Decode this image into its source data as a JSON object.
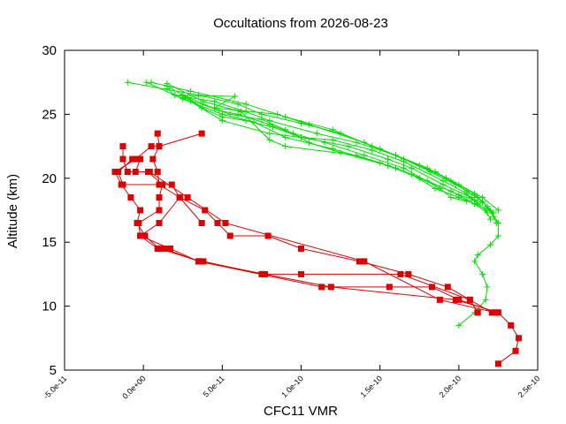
{
  "chart_data": {
    "type": "line",
    "title": "Occultations from 2026-08-23",
    "xlabel": "CFC11 VMR",
    "ylabel": "Altitude (km)",
    "xlim": [
      -5e-11,
      2.5e-10
    ],
    "ylim": [
      5,
      30
    ],
    "x_ticks": [
      {
        "value": -5e-11,
        "label": "-5.0e-11"
      },
      {
        "value": 0,
        "label": "0.0e+00"
      },
      {
        "value": 5e-11,
        "label": "5.0e-11"
      },
      {
        "value": 1e-10,
        "label": "1.0e-10"
      },
      {
        "value": 1.5e-10,
        "label": "1.5e-10"
      },
      {
        "value": 2e-10,
        "label": "2.0e-10"
      },
      {
        "value": 2.5e-10,
        "label": "2.5e-10"
      }
    ],
    "y_ticks": [
      {
        "value": 5,
        "label": "5"
      },
      {
        "value": 10,
        "label": "10"
      },
      {
        "value": 15,
        "label": "15"
      },
      {
        "value": 20,
        "label": "20"
      },
      {
        "value": 25,
        "label": "25"
      },
      {
        "value": 30,
        "label": "30"
      }
    ],
    "grid": false,
    "legend": "none",
    "series": [
      {
        "color": "#00dd00",
        "marker": "plus",
        "points": [
          [
            2e-11,
            26.5
          ],
          [
            5.8e-11,
            26.4
          ],
          [
            4.5e-11,
            25.5
          ],
          [
            8.5e-11,
            25.0
          ],
          [
            1.05e-10,
            24.2
          ],
          [
            1.4e-10,
            22.8
          ],
          [
            1.65e-10,
            21.5
          ],
          [
            1.85e-10,
            20.5
          ],
          [
            2e-10,
            19.5
          ],
          [
            2.15e-10,
            18.5
          ],
          [
            2.25e-10,
            17.5
          ]
        ]
      },
      {
        "color": "#00dd00",
        "marker": "plus",
        "points": [
          [
            -1e-11,
            27.5
          ],
          [
            3.5e-11,
            26.5
          ],
          [
            6e-11,
            25.8
          ],
          [
            7.5e-11,
            25.0
          ],
          [
            1e-10,
            24.3
          ],
          [
            1.25e-10,
            23.5
          ],
          [
            1.5e-10,
            22.3
          ],
          [
            1.8e-10,
            20.8
          ],
          [
            1.95e-10,
            19.8
          ],
          [
            2.1e-10,
            18.8
          ],
          [
            2.2e-10,
            17.5
          ],
          [
            2.25e-10,
            16.5
          ],
          [
            2.25e-10,
            15.5
          ],
          [
            2.2e-10,
            14.8
          ],
          [
            2.12e-10,
            14.0
          ],
          [
            2.1e-10,
            13.5
          ],
          [
            2.15e-10,
            12.5
          ],
          [
            2.18e-10,
            11.5
          ],
          [
            2.17e-10,
            10.5
          ],
          [
            2.1e-10,
            9.5
          ],
          [
            2e-10,
            8.5
          ]
        ]
      },
      {
        "color": "#00dd00",
        "marker": "plus",
        "points": [
          [
            5e-12,
            27.5
          ],
          [
            3e-11,
            26.8
          ],
          [
            6.5e-11,
            25.8
          ],
          [
            9e-11,
            24.8
          ],
          [
            1.2e-10,
            23.8
          ],
          [
            1.45e-10,
            22.5
          ],
          [
            1.75e-10,
            21.0
          ],
          [
            1.92e-10,
            20.0
          ],
          [
            2.05e-10,
            19.0
          ],
          [
            2.15e-10,
            18.2
          ],
          [
            2.22e-10,
            17.0
          ],
          [
            2.24e-10,
            16.5
          ]
        ]
      },
      {
        "color": "#00dd00",
        "marker": "plus",
        "points": [
          [
            1.5e-11,
            27.0
          ],
          [
            2e-11,
            26.5
          ],
          [
            4.5e-11,
            26.0
          ],
          [
            6.5e-11,
            25.2
          ],
          [
            8e-11,
            24.5
          ],
          [
            1.1e-10,
            23.5
          ],
          [
            1.35e-10,
            22.8
          ],
          [
            1.6e-10,
            21.8
          ],
          [
            1.82e-10,
            20.5
          ],
          [
            1.98e-10,
            19.5
          ],
          [
            2.12e-10,
            18.5
          ],
          [
            2.18e-10,
            17.8
          ],
          [
            2.22e-10,
            17.3
          ]
        ]
      },
      {
        "color": "#00dd00",
        "marker": "plus",
        "points": [
          [
            1.5e-11,
            27.2
          ],
          [
            2.8e-11,
            26.3
          ],
          [
            3.7e-11,
            25.5
          ],
          [
            5e-11,
            24.8
          ],
          [
            6.5e-11,
            24.5
          ],
          [
            8.2e-11,
            24.0
          ],
          [
            1e-10,
            23.2
          ],
          [
            1.3e-10,
            22.5
          ],
          [
            1.55e-10,
            21.5
          ],
          [
            1.7e-10,
            20.8
          ],
          [
            1.9e-10,
            19.5
          ],
          [
            2.08e-10,
            18.5
          ],
          [
            2.17e-10,
            17.5
          ],
          [
            2.2e-10,
            16.8
          ]
        ]
      },
      {
        "color": "#00dd00",
        "marker": "plus",
        "points": [
          [
            2.5e-11,
            26.5
          ],
          [
            4.8e-11,
            25.3
          ],
          [
            6e-11,
            25.0
          ],
          [
            8e-11,
            24.2
          ],
          [
            9.5e-11,
            23.5
          ],
          [
            1.15e-10,
            22.8
          ],
          [
            1.4e-10,
            21.8
          ],
          [
            1.65e-10,
            20.8
          ],
          [
            1.88e-10,
            19.2
          ],
          [
            1.95e-10,
            18.5
          ],
          [
            2.05e-10,
            18.2
          ],
          [
            2.1e-10,
            18.3
          ]
        ]
      },
      {
        "color": "#00dd00",
        "marker": "plus",
        "points": [
          [
            2e-12,
            27.5
          ],
          [
            2.5e-11,
            26.2
          ],
          [
            5e-11,
            25.0
          ],
          [
            7e-11,
            24.4
          ],
          [
            9e-11,
            23.2
          ],
          [
            1.2e-10,
            22.3
          ],
          [
            1.5e-10,
            21.2
          ],
          [
            1.7e-10,
            20.3
          ],
          [
            1.85e-10,
            19.2
          ],
          [
            2e-10,
            18.5
          ],
          [
            2.1e-10,
            18.0
          ],
          [
            2.18e-10,
            17.3
          ]
        ]
      },
      {
        "color": "#00dd00",
        "marker": "plus",
        "points": [
          [
            3e-11,
            26.0
          ],
          [
            5e-11,
            24.5
          ],
          [
            8e-11,
            23.5
          ],
          [
            1e-10,
            23.2
          ],
          [
            1.2e-10,
            23.0
          ],
          [
            1.45e-10,
            22.2
          ],
          [
            1.65e-10,
            21.3
          ],
          [
            1.9e-10,
            19.8
          ],
          [
            2.05e-10,
            18.8
          ],
          [
            2.12e-10,
            18.0
          ]
        ]
      },
      {
        "color": "#00dd00",
        "marker": "plus",
        "points": [
          [
            2.5e-11,
            26.3
          ],
          [
            5.5e-11,
            25.0
          ],
          [
            7.5e-11,
            24.6
          ],
          [
            9e-11,
            23.8
          ],
          [
            1.05e-10,
            22.8
          ],
          [
            1.25e-10,
            22.0
          ],
          [
            1.55e-10,
            21.0
          ],
          [
            1.75e-10,
            20.0
          ],
          [
            1.95e-10,
            19.0
          ],
          [
            2.1e-10,
            18.0
          ],
          [
            2.2e-10,
            17.5
          ]
        ]
      },
      {
        "color": "#00dd00",
        "marker": "plus",
        "points": [
          [
            1.5e-11,
            27.4
          ],
          [
            3.8e-11,
            26.0
          ],
          [
            6.2e-11,
            25.2
          ],
          [
            8e-11,
            23.0
          ],
          [
            9e-11,
            22.5
          ],
          [
            1.35e-10,
            21.8
          ],
          [
            1.6e-10,
            20.8
          ],
          [
            1.8e-10,
            19.8
          ],
          [
            2e-10,
            18.7
          ],
          [
            2.15e-10,
            18.1
          ]
        ]
      },
      {
        "color": "#dd0000",
        "marker": "square",
        "points": [
          [
            3.7e-11,
            23.5
          ],
          [
            1e-11,
            22.5
          ],
          [
            5e-12,
            22.5
          ],
          [
            -5e-12,
            21.5
          ],
          [
            -1.8e-11,
            20.5
          ],
          [
            -1.4e-11,
            19.5
          ],
          [
            -8e-12,
            18.5
          ],
          [
            -2e-12,
            17.5
          ],
          [
            -4e-12,
            16.5
          ],
          [
            1e-12,
            15.5
          ],
          [
            1e-11,
            14.5
          ],
          [
            3.6e-11,
            13.5
          ],
          [
            7.7e-11,
            12.5
          ],
          [
            1.19e-10,
            11.5
          ],
          [
            1.98e-10,
            10.5
          ],
          [
            2.25e-10,
            9.5
          ],
          [
            2.33e-10,
            8.5
          ],
          [
            2.38e-10,
            7.5
          ],
          [
            2.36e-10,
            6.5
          ],
          [
            2.25e-10,
            5.5
          ]
        ]
      },
      {
        "color": "#dd0000",
        "marker": "square",
        "points": [
          [
            9e-12,
            23.5
          ],
          [
            1e-11,
            22.5
          ],
          [
            6e-12,
            21.5
          ],
          [
            9e-12,
            20.5
          ],
          [
            1e-11,
            19.5
          ],
          [
            2.3e-11,
            18.5
          ],
          [
            3.9e-11,
            17.5
          ],
          [
            4.7e-11,
            16.5
          ],
          [
            5.5e-11,
            15.5
          ],
          [
            7.9e-11,
            15.5
          ],
          [
            1e-10,
            14.5
          ],
          [
            1.37e-10,
            13.5
          ],
          [
            1.68e-10,
            12.5
          ],
          [
            1.93e-10,
            11.5
          ],
          [
            2.07e-10,
            10.5
          ],
          [
            2.21e-10,
            9.5
          ]
        ]
      },
      {
        "color": "#dd0000",
        "marker": "square",
        "points": [
          [
            -1.3e-11,
            22.5
          ],
          [
            -1.3e-11,
            21.5
          ],
          [
            -1e-11,
            20.5
          ],
          [
            3e-12,
            20.5
          ],
          [
            1.2e-11,
            19.5
          ],
          [
            1e-11,
            18.5
          ],
          [
            1e-11,
            17.5
          ],
          [
            -3e-12,
            16.5
          ],
          [
            -2e-12,
            15.5
          ],
          [
            9e-12,
            14.5
          ],
          [
            1.3e-11,
            14.5
          ],
          [
            3.5e-11,
            13.5
          ],
          [
            3.8e-11,
            13.5
          ],
          [
            7.5e-11,
            12.5
          ],
          [
            1e-10,
            12.5
          ],
          [
            1.63e-10,
            12.5
          ],
          [
            2.07e-10,
            10.5
          ],
          [
            2.12e-10,
            9.5
          ]
        ]
      },
      {
        "color": "#dd0000",
        "marker": "square",
        "points": [
          [
            -7e-12,
            21.5
          ],
          [
            -1.6e-11,
            20.5
          ],
          [
            -1.3e-11,
            19.5
          ],
          [
            1e-11,
            19.5
          ],
          [
            1.8e-11,
            19.5
          ],
          [
            2.3e-11,
            18.5
          ],
          [
            3.7e-11,
            16.5
          ],
          [
            2.3e-11,
            18.5
          ],
          [
            1e-11,
            16.5
          ],
          [
            -2e-12,
            15.5
          ],
          [
            1.7e-11,
            14.5
          ],
          [
            3.5e-11,
            13.5
          ],
          [
            1.13e-10,
            11.5
          ],
          [
            1.56e-10,
            11.5
          ],
          [
            1.83e-10,
            11.5
          ],
          [
            2e-10,
            10.5
          ],
          [
            2.24e-10,
            9.5
          ]
        ]
      },
      {
        "color": "#dd0000",
        "marker": "square",
        "points": [
          [
            -2e-12,
            21.5
          ],
          [
            -5e-12,
            20.5
          ],
          [
            4e-12,
            20.5
          ],
          [
            2.8e-11,
            18.5
          ],
          [
            5.2e-11,
            16.5
          ],
          [
            1.4e-10,
            13.5
          ],
          [
            1.88e-10,
            10.5
          ],
          [
            2.23e-10,
            9.5
          ]
        ]
      }
    ]
  }
}
